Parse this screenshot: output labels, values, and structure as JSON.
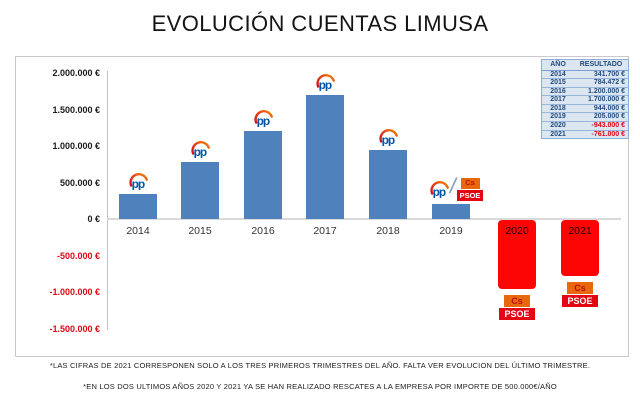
{
  "title": "EVOLUCIÓN CUENTAS LIMUSA",
  "chart_data": {
    "type": "bar",
    "categories": [
      "2014",
      "2015",
      "2016",
      "2017",
      "2018",
      "2019",
      "2020",
      "2021"
    ],
    "values": [
      341700,
      784472,
      1200000,
      1700000,
      944000,
      205000,
      -943000,
      -761000
    ],
    "ylim": [
      -1500000,
      2000000
    ],
    "grid": false,
    "legend": false,
    "y_ticks": [
      {
        "label": "2.000.000 €",
        "value": 2000000
      },
      {
        "label": "1.500.000 €",
        "value": 1500000
      },
      {
        "label": "1.000.000 €",
        "value": 1000000
      },
      {
        "label": "500.000 €",
        "value": 500000
      },
      {
        "label": "0 €",
        "value": 0
      },
      {
        "label": "-500.000 €",
        "value": -500000
      },
      {
        "label": "-1.000.000 €",
        "value": -1000000
      },
      {
        "label": "-1.500.000 €",
        "value": -1500000
      }
    ],
    "markers": [
      "pp",
      "pp",
      "pp",
      "pp",
      "pp",
      "pp-cs-psoe",
      "cs-psoe",
      "cs-psoe"
    ]
  },
  "pp_text": "pp",
  "badges": {
    "cs": "Cs",
    "psoe": "PSOE"
  },
  "slash": "/",
  "table": {
    "headers": [
      "AÑO",
      "RESULTADO"
    ],
    "rows": [
      [
        "2014",
        "341.700 €"
      ],
      [
        "2015",
        "784.472 €"
      ],
      [
        "2016",
        "1.200.000 €"
      ],
      [
        "2017",
        "1.700.000 €"
      ],
      [
        "2018",
        "944.000 €"
      ],
      [
        "2019",
        "205.000 €"
      ],
      [
        "2020",
        "-943.000 €"
      ],
      [
        "2021",
        "-761.000 €"
      ]
    ]
  },
  "footnotes": [
    "*LAS CIFRAS DE 2021 CORRESPONEN SOLO A LOS TRES PRIMEROS TRIMESTRES DEL AÑO. FALTA VER EVOLUCION DEL ÚLTIMO TRIMESTRE.",
    "*EN LOS DOS ULTIMOS AÑOS 2020 Y 2021 YA SE HAN REALIZADO RESCATES A LA EMPRESA POR IMPORTE DE 500.000€/AÑO"
  ],
  "colors": {
    "bar_positive": "#4f81bd",
    "bar_negative": "#fd0505",
    "tick_negative": "#e00613",
    "table_bg": "#dce6f1",
    "table_text": "#1f497d",
    "table_negative": "#e00613",
    "cs_bg": "#e8680e",
    "cs_text": "#bf0d0d",
    "psoe_bg": "#e30613",
    "psoe_text": "#ffffff",
    "pp_blue": "#0057a8"
  }
}
